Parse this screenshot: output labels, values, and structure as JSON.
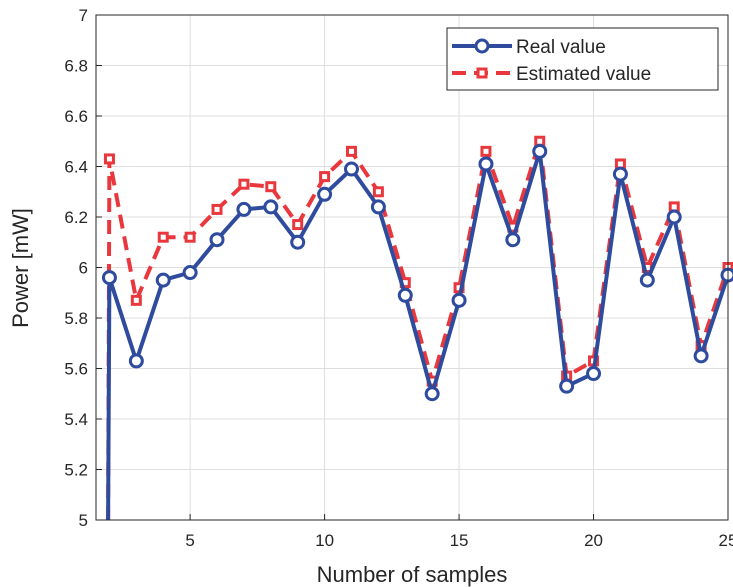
{
  "chart_data": {
    "type": "line",
    "xlabel": "Number of samples",
    "ylabel": "Power [mW]",
    "xlim": [
      1.5,
      25
    ],
    "ylim": [
      5,
      7
    ],
    "xticks": [
      5,
      10,
      15,
      20,
      25
    ],
    "yticks": [
      5,
      5.2,
      5.4,
      5.6,
      5.8,
      6,
      6.2,
      6.4,
      6.6,
      6.8,
      7
    ],
    "xtick_labels": [
      "5",
      "10",
      "15",
      "20",
      "25"
    ],
    "ytick_labels": [
      "5",
      "5.2",
      "5.4",
      "5.6",
      "5.8",
      "6",
      "6.2",
      "6.4",
      "6.6",
      "6.8",
      "7"
    ],
    "grid": true,
    "legend_position": "top-right",
    "x": [
      2,
      3,
      4,
      5,
      6,
      7,
      8,
      9,
      10,
      11,
      12,
      13,
      14,
      15,
      16,
      17,
      18,
      19,
      20,
      21,
      22,
      23,
      24,
      25
    ],
    "series": [
      {
        "name": "Real value",
        "color": "#2E4B9E",
        "line_style": "solid",
        "marker": "circle",
        "start_point": [
          1.95,
          5.0
        ],
        "values": [
          5.96,
          5.63,
          5.95,
          5.98,
          6.11,
          6.23,
          6.24,
          6.1,
          6.29,
          6.39,
          6.24,
          5.89,
          5.5,
          5.87,
          6.41,
          6.11,
          6.46,
          5.53,
          5.58,
          6.37,
          5.95,
          6.2,
          5.65,
          5.97
        ]
      },
      {
        "name": "Estimated value",
        "color": "#E8383D",
        "line_style": "dashed",
        "marker": "square",
        "start_point": [
          1.95,
          5.0
        ],
        "values": [
          6.43,
          5.87,
          6.12,
          6.12,
          6.23,
          6.33,
          6.32,
          6.17,
          6.36,
          6.46,
          6.3,
          5.94,
          5.55,
          5.92,
          6.46,
          6.16,
          6.5,
          5.57,
          5.63,
          6.41,
          6.0,
          6.24,
          5.69,
          6.0
        ]
      }
    ]
  }
}
